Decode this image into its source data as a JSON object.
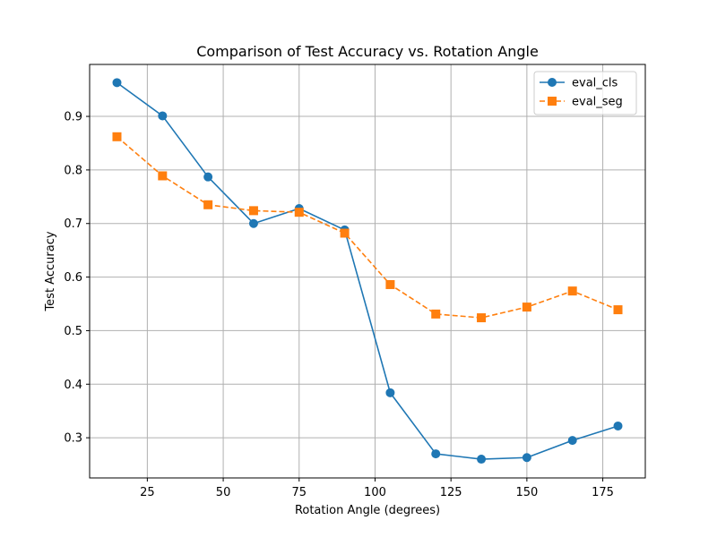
{
  "chart_data": {
    "type": "line",
    "title": "Comparison of Test Accuracy vs. Rotation Angle",
    "xlabel": "Rotation Angle (degrees)",
    "ylabel": "Test Accuracy",
    "xlim": [
      6,
      189
    ],
    "ylim": [
      0.225,
      0.997
    ],
    "x_ticks": [
      25,
      50,
      75,
      100,
      125,
      150,
      175
    ],
    "y_ticks": [
      0.3,
      0.4,
      0.5,
      0.6,
      0.7,
      0.8,
      0.9
    ],
    "grid": true,
    "legend_position": "top-right",
    "x": [
      15,
      30,
      45,
      60,
      75,
      90,
      105,
      120,
      135,
      150,
      165,
      180
    ],
    "series": [
      {
        "name": "eval_cls",
        "color": "#1f77b4",
        "line_style": "solid",
        "marker": "circle",
        "values": [
          0.963,
          0.901,
          0.787,
          0.7,
          0.728,
          0.688,
          0.384,
          0.27,
          0.26,
          0.263,
          0.295,
          0.322
        ]
      },
      {
        "name": "eval_seg",
        "color": "#ff7f0e",
        "line_style": "dashed",
        "marker": "square",
        "values": [
          0.862,
          0.789,
          0.735,
          0.724,
          0.721,
          0.682,
          0.586,
          0.531,
          0.524,
          0.544,
          0.574,
          0.539
        ]
      }
    ]
  }
}
